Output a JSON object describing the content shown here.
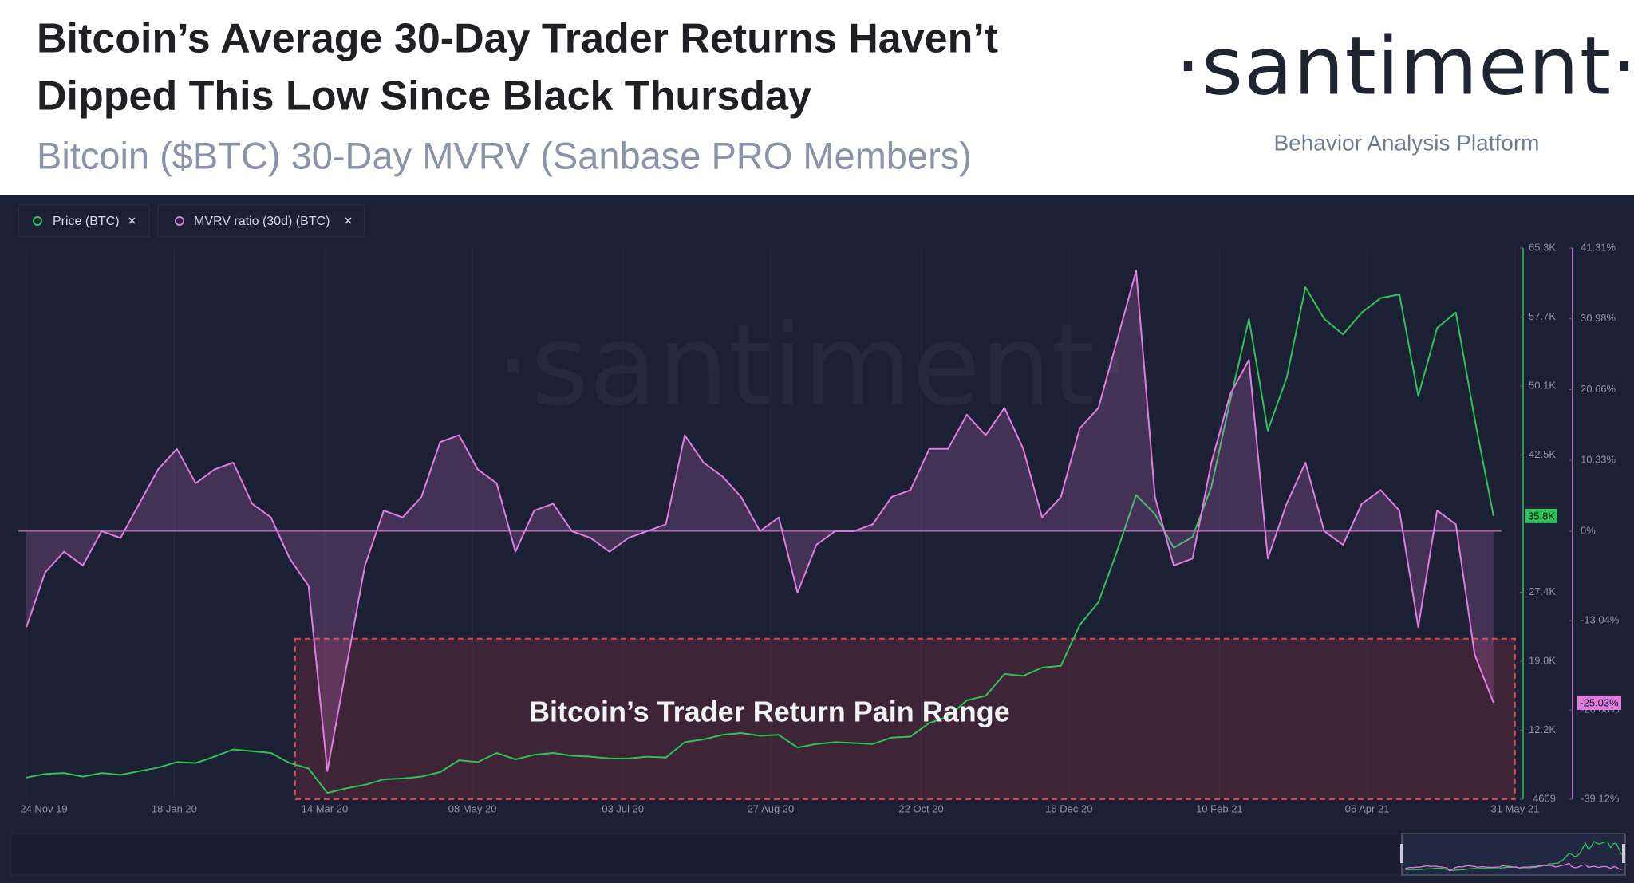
{
  "header": {
    "title_lines": [
      "Bitcoin’s Average 30-Day Trader Returns Haven’t",
      "Dipped This Low Since Black Thursday"
    ],
    "subtitle": "Bitcoin ($BTC) 30-Day MVRV (Sanbase PRO Members)",
    "logo": "·santiment·",
    "tagline": "Behavior Analysis Platform"
  },
  "chart_data": {
    "type": "line",
    "watermark": "·santiment·",
    "x": [
      "2019-11-24",
      "2019-12-01",
      "2019-12-08",
      "2019-12-15",
      "2019-12-22",
      "2019-12-29",
      "2020-01-05",
      "2020-01-12",
      "2020-01-19",
      "2020-01-26",
      "2020-02-02",
      "2020-02-09",
      "2020-02-16",
      "2020-02-23",
      "2020-03-01",
      "2020-03-08",
      "2020-03-15",
      "2020-03-22",
      "2020-03-29",
      "2020-04-05",
      "2020-04-12",
      "2020-04-19",
      "2020-04-26",
      "2020-05-03",
      "2020-05-10",
      "2020-05-17",
      "2020-05-24",
      "2020-05-31",
      "2020-06-07",
      "2020-06-14",
      "2020-06-21",
      "2020-06-28",
      "2020-07-05",
      "2020-07-12",
      "2020-07-19",
      "2020-07-26",
      "2020-08-02",
      "2020-08-09",
      "2020-08-16",
      "2020-08-23",
      "2020-08-30",
      "2020-09-06",
      "2020-09-13",
      "2020-09-20",
      "2020-09-27",
      "2020-10-04",
      "2020-10-11",
      "2020-10-18",
      "2020-10-25",
      "2020-11-01",
      "2020-11-08",
      "2020-11-15",
      "2020-11-22",
      "2020-11-29",
      "2020-12-06",
      "2020-12-13",
      "2020-12-20",
      "2020-12-27",
      "2021-01-03",
      "2021-01-10",
      "2021-01-17",
      "2021-01-24",
      "2021-01-31",
      "2021-02-07",
      "2021-02-14",
      "2021-02-21",
      "2021-02-28",
      "2021-03-07",
      "2021-03-14",
      "2021-03-21",
      "2021-03-28",
      "2021-04-04",
      "2021-04-11",
      "2021-04-18",
      "2021-04-25",
      "2021-05-02",
      "2021-05-09",
      "2021-05-16",
      "2021-05-23"
    ],
    "xlim": [
      "2019-11-21",
      "2021-05-26"
    ],
    "xticks": [
      {
        "value": "2019-11-24",
        "label": "24 Nov 19"
      },
      {
        "value": "2020-01-18",
        "label": "18 Jan 20"
      },
      {
        "value": "2020-03-14",
        "label": "14 Mar 20"
      },
      {
        "value": "2020-05-08",
        "label": "08 May 20"
      },
      {
        "value": "2020-07-03",
        "label": "03 Jul 20"
      },
      {
        "value": "2020-08-27",
        "label": "27 Aug 20"
      },
      {
        "value": "2020-10-22",
        "label": "22 Oct 20"
      },
      {
        "value": "2020-12-16",
        "label": "16 Dec 20"
      },
      {
        "value": "2021-02-10",
        "label": "10 Feb 21"
      },
      {
        "value": "2021-04-06",
        "label": "06 Apr 21"
      },
      {
        "value": "2021-05-31",
        "label": "31 May 21"
      }
    ],
    "ylim": [
      4609,
      65300
    ],
    "yticks": [
      4609,
      {
        "value": 12200,
        "label": "12.2K"
      },
      {
        "value": 19800,
        "label": "19.8K"
      },
      {
        "value": 27400,
        "label": "27.4K"
      },
      {
        "value": 42500,
        "label": "42.5K"
      },
      {
        "value": 50100,
        "label": "50.1K"
      },
      {
        "value": 57700,
        "label": "57.7K"
      },
      {
        "value": 65300,
        "label": "65.3K"
      }
    ],
    "y2lim": [
      -39.12,
      41.31
    ],
    "y2ticks": [
      {
        "value": -39.12,
        "label": "-39.12%"
      },
      {
        "value": -26.08,
        "label": "-26.08%"
      },
      {
        "value": -13.04,
        "label": "-13.04%"
      },
      {
        "value": 0,
        "label": "0%"
      },
      {
        "value": 10.33,
        "label": "10.33%"
      },
      {
        "value": 20.66,
        "label": "20.66%"
      },
      {
        "value": 30.98,
        "label": "30.98%"
      },
      {
        "value": 41.31,
        "label": "41.31%"
      }
    ],
    "series": [
      {
        "name": "Price (BTC)",
        "color": "#2fc257",
        "axis": "y",
        "values": [
          7000,
          7400,
          7500,
          7100,
          7500,
          7300,
          7700,
          8100,
          8700,
          8600,
          9300,
          10100,
          9900,
          9700,
          8600,
          8000,
          5300,
          5800,
          6200,
          6800,
          6900,
          7100,
          7600,
          8900,
          8700,
          9700,
          9000,
          9500,
          9700,
          9400,
          9300,
          9100,
          9100,
          9300,
          9200,
          10900,
          11200,
          11700,
          11900,
          11600,
          11700,
          10300,
          10700,
          10900,
          10800,
          10700,
          11400,
          11500,
          13000,
          13700,
          15500,
          16000,
          18400,
          18200,
          19100,
          19300,
          23800,
          26300,
          32000,
          38100,
          36000,
          32300,
          33500,
          39000,
          48500,
          57500,
          45200,
          51000,
          61000,
          57500,
          55800,
          58200,
          59800,
          60200,
          49000,
          56500,
          58200,
          46500,
          35800
        ],
        "value_labels": [
          null,
          null,
          null,
          null,
          null,
          null,
          null,
          null,
          null,
          null,
          null,
          null,
          null,
          null,
          null,
          null,
          null,
          null,
          null,
          null,
          null,
          null,
          null,
          null,
          null,
          null,
          null,
          null,
          null,
          null,
          null,
          null,
          null,
          null,
          null,
          null,
          null,
          null,
          null,
          null,
          null,
          null,
          null,
          null,
          null,
          null,
          null,
          null,
          null,
          null,
          null,
          null,
          null,
          null,
          null,
          null,
          null,
          null,
          null,
          null,
          null,
          null,
          null,
          null,
          null,
          null,
          null,
          null,
          null,
          null,
          null,
          null,
          null,
          null,
          null,
          null,
          null,
          null,
          "35.8K"
        ]
      },
      {
        "name": "MVRV ratio (30d) (BTC)",
        "color": "#e07ce0",
        "axis": "y2",
        "values": [
          -14,
          -6,
          -3,
          -5,
          0,
          -1,
          4,
          9,
          12,
          7,
          9,
          10,
          4,
          2,
          -4,
          -8,
          -35,
          -20,
          -5,
          3,
          2,
          5,
          13,
          14,
          9,
          7,
          -3,
          3,
          4,
          0,
          -1,
          -3,
          -1,
          0,
          1,
          14,
          10,
          8,
          5,
          0,
          2,
          -9,
          -2,
          0,
          0,
          1,
          5,
          6,
          12,
          12,
          17,
          14,
          18,
          12,
          2,
          5,
          15,
          18,
          28,
          38,
          5,
          -5,
          -4,
          10,
          20,
          25,
          -4,
          4,
          10,
          0,
          -2,
          4,
          6,
          3,
          -14,
          3,
          1,
          -18,
          -25.03
        ],
        "value_labels": [
          null,
          null,
          null,
          null,
          null,
          null,
          null,
          null,
          null,
          null,
          null,
          null,
          null,
          null,
          null,
          null,
          null,
          null,
          null,
          null,
          null,
          null,
          null,
          null,
          null,
          null,
          null,
          null,
          null,
          null,
          null,
          null,
          null,
          null,
          null,
          null,
          null,
          null,
          null,
          null,
          null,
          null,
          null,
          null,
          null,
          null,
          null,
          null,
          null,
          null,
          null,
          null,
          null,
          null,
          null,
          null,
          null,
          null,
          null,
          null,
          null,
          null,
          null,
          null,
          null,
          null,
          null,
          null,
          null,
          null,
          null,
          null,
          null,
          null,
          null,
          null,
          null,
          null,
          "-25.03%"
        ]
      }
    ],
    "highlight": {
      "label": "Bitcoin’s Trader Return Pain Range",
      "x": [
        "2020-03-03",
        "2021-05-31"
      ],
      "y2": [
        -15.7,
        -39.12
      ],
      "color": "#e0434a"
    },
    "grid": true
  }
}
